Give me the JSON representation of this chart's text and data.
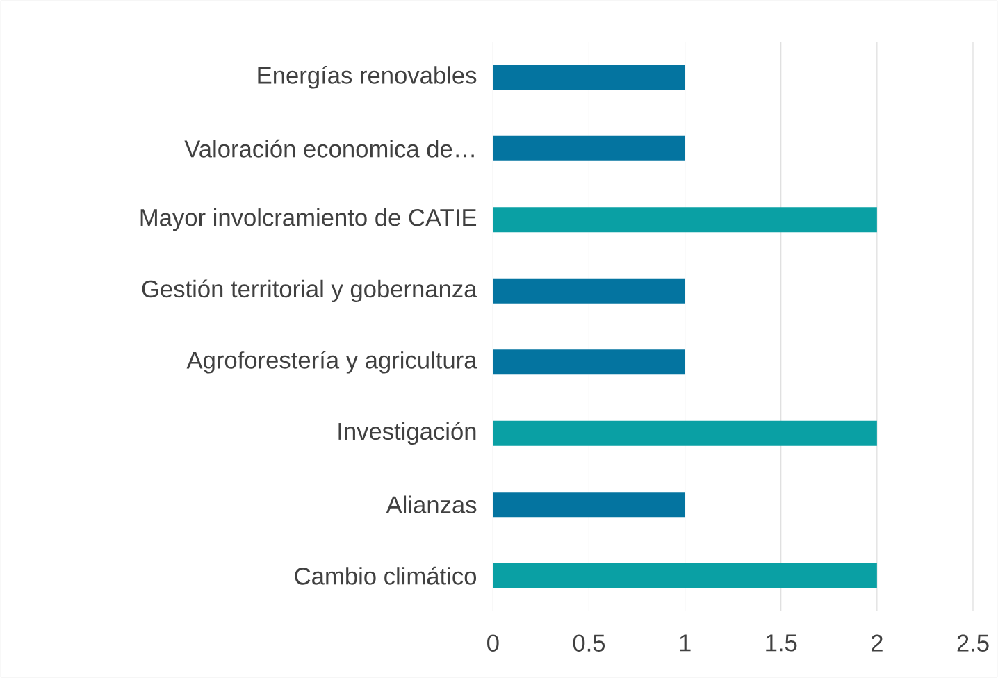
{
  "chart_data": {
    "type": "bar",
    "orientation": "horizontal",
    "categories": [
      "Energías renovables",
      "Valoración economica de…",
      "Mayor involcramiento de CATIE",
      "Gestión territorial y gobernanza",
      "Agroforestería y agricultura",
      "Investigación",
      "Alianzas",
      "Cambio climático"
    ],
    "values": [
      1,
      1,
      2,
      1,
      1,
      2,
      1,
      2
    ],
    "colors": [
      "#0474a0",
      "#0474a0",
      "#0aa0a4",
      "#0474a0",
      "#0474a0",
      "#0aa0a4",
      "#0474a0",
      "#0aa0a4"
    ],
    "xlim": [
      0,
      2.5
    ],
    "xticks": [
      0,
      0.5,
      1,
      1.5,
      2,
      2.5
    ],
    "grid": "x"
  }
}
